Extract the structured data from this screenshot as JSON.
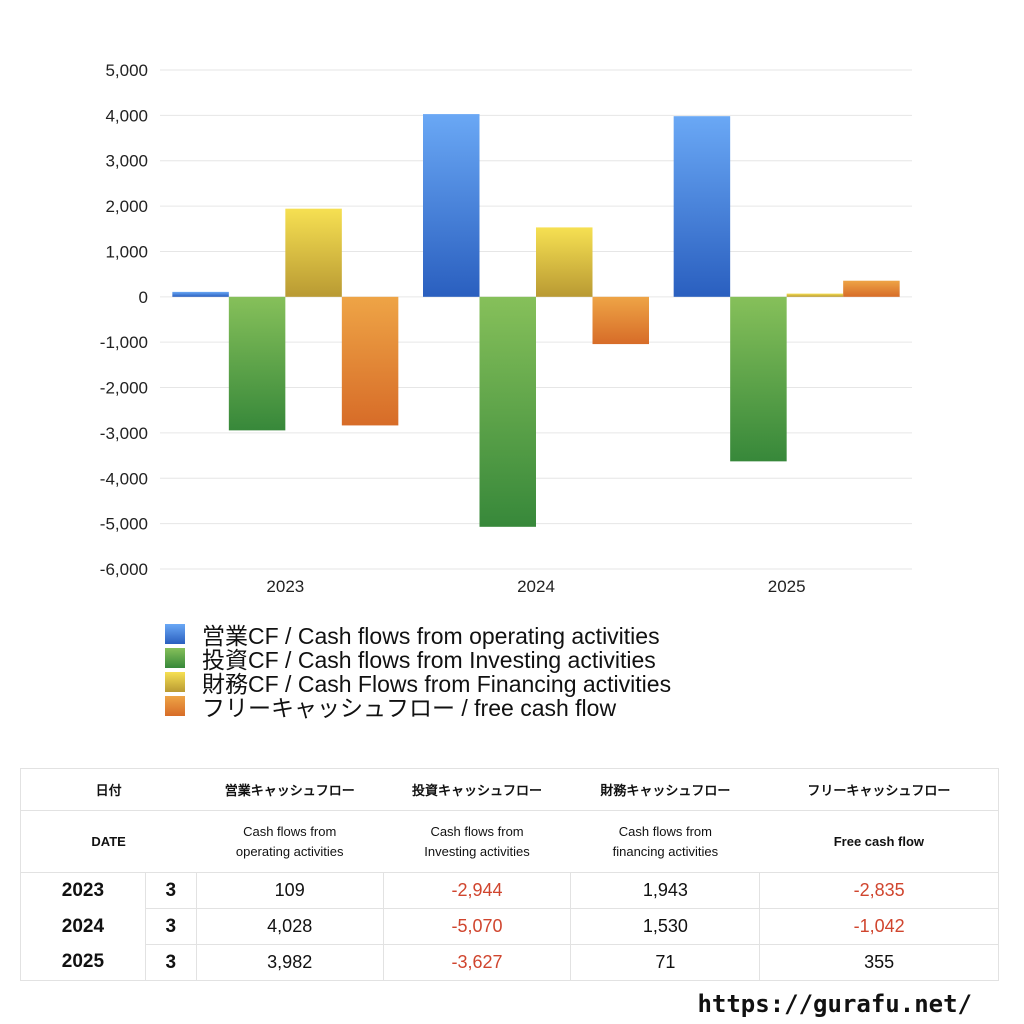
{
  "chart_data": {
    "type": "bar",
    "categories": [
      "2023",
      "2024",
      "2025"
    ],
    "series": [
      {
        "name": "営業CF / Cash flows from operating activities",
        "values": [
          109,
          4028,
          3982
        ],
        "colors": [
          "#6aa8f5",
          "#2a5fbf"
        ]
      },
      {
        "name": "投資CF / Cash flows from Investing activities",
        "values": [
          -2944,
          -5070,
          -3627
        ],
        "colors": [
          "#86c05a",
          "#37883a"
        ]
      },
      {
        "name": "財務CF / Cash Flows from Financing activities",
        "values": [
          1943,
          1530,
          71
        ],
        "colors": [
          "#f6e052",
          "#b99a33"
        ]
      },
      {
        "name": "フリーキャッシュフロー / free cash flow",
        "values": [
          -2835,
          -1042,
          355
        ],
        "colors": [
          "#eea446",
          "#d76c28"
        ]
      }
    ],
    "ylim": [
      -6000,
      5000
    ],
    "yticks": [
      "5,000",
      "4,000",
      "3,000",
      "2,000",
      "1,000",
      "0",
      "-1,000",
      "-2,000",
      "-3,000",
      "-4,000",
      "-5,000",
      "-6,000"
    ],
    "grid": true,
    "legend": "bottom-left"
  },
  "table": {
    "headers_ja": [
      "日付",
      "営業キャッシュフロー",
      "投資キャッシュフロー",
      "財務キャッシュフロー",
      "フリーキャッシュフロー"
    ],
    "headers_en": [
      "DATE",
      "Cash flows from operating activities",
      "Cash flows from Investing activities",
      "Cash flows from financing activities",
      "Free cash flow"
    ],
    "rows": [
      {
        "year": "2023",
        "month": "3",
        "values": [
          "109",
          "-2,944",
          "1,943",
          "-2,835"
        ]
      },
      {
        "year": "2024",
        "month": "3",
        "values": [
          "4,028",
          "-5,070",
          "1,530",
          "-1,042"
        ]
      },
      {
        "year": "2025",
        "month": "3",
        "values": [
          "3,982",
          "-3,627",
          "71",
          "355"
        ]
      }
    ]
  },
  "footer": {
    "url": "https://gurafu.net/"
  },
  "colors": {
    "negative": "#d0452e"
  }
}
